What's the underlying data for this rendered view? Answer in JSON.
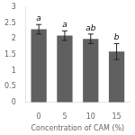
{
  "chart_data": {
    "type": "bar",
    "categories": [
      "0",
      "5",
      "10",
      "15"
    ],
    "values": [
      2.3,
      2.1,
      2.0,
      1.6
    ],
    "errors": [
      0.15,
      0.15,
      0.15,
      0.25
    ],
    "annotations": [
      "a",
      "a",
      "ab",
      "b"
    ],
    "color": "#606060",
    "xlabel": "Concentration of CAM (%)",
    "ylim": [
      0,
      3
    ],
    "yticks": [
      0,
      0.5,
      1,
      1.5,
      2,
      2.5,
      3
    ],
    "grid": false
  }
}
